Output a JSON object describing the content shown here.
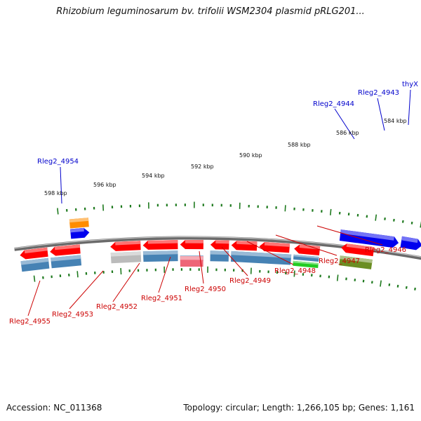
{
  "title": "Rhizobium leguminosarum bv. trifolii WSM2304 plasmid pRLG201...",
  "footer": {
    "accession": "Accession: NC_011368",
    "summary": "Topology: circular; Length: 1,266,105 bp; Genes: 1,161"
  },
  "colors": {
    "backbone": "#8a8a8a",
    "tick": "#1f7a1f",
    "forward_label": "#0000cc",
    "reverse_label": "#cc0000",
    "cds_red": "#ff0000",
    "cds_blue": "#0000ee",
    "cds_steelblue": "#4682b4",
    "cds_orange": "#ff8c00",
    "cds_olive": "#6b8e23",
    "cds_green": "#22cc22",
    "cds_cyan": "#00aaee",
    "cds_grey": "#bbbbbb",
    "cds_pink": "#ee6677"
  },
  "scale": {
    "unit": "kbp",
    "tick_labels": [
      "598 kbp",
      "596 kbp",
      "594 kbp",
      "592 kbp",
      "590 kbp",
      "588 kbp",
      "586 kbp",
      "584 kbp"
    ]
  },
  "forward_gene_labels": [
    "Rleg2_4954",
    "Rleg2_4944",
    "Rleg2_4943",
    "thyX"
  ],
  "reverse_gene_labels": [
    "Rleg2_4955",
    "Rleg2_4953",
    "Rleg2_4952",
    "Rleg2_4951",
    "Rleg2_4950",
    "Rleg2_4949",
    "Rleg2_4948",
    "Rleg2_4947",
    "Rleg2_4946"
  ]
}
